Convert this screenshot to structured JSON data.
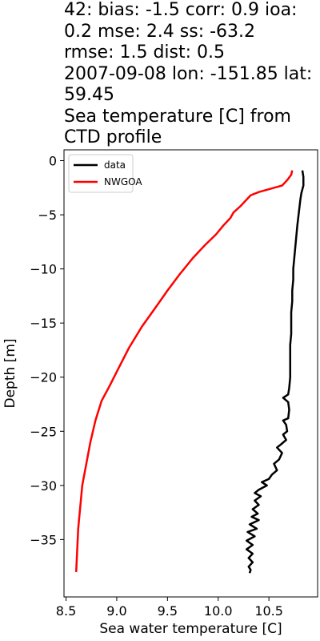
{
  "title_lines": [
    "42: bias: -1.5  corr: 0.9  ioa:",
    "0.2  mse: 2.4  ss: -63.2",
    "rmse: 1.5  dist: 0.5",
    "2007-09-08 lon: -151.85 lat:",
    "59.45",
    "Sea temperature [C] from",
    "CTD profile"
  ],
  "chart_data": {
    "type": "line",
    "title": "42: bias: -1.5  corr: 0.9  ioa: 0.2  mse: 2.4  ss: -63.2 rmse: 1.5  dist: 0.5 2007-09-08 lon: -151.85 lat: 59.45 Sea temperature [C] from CTD profile",
    "xlabel": "Sea water temperature [C]",
    "ylabel": "Depth [m]",
    "xlim": [
      8.48,
      10.98
    ],
    "ylim": [
      -40.3,
      1.0
    ],
    "xticks": [
      8.5,
      9.0,
      9.5,
      10.0,
      10.5
    ],
    "xtick_labels": [
      "8.5",
      "9.0",
      "9.5",
      "10.0",
      "10.5"
    ],
    "yticks": [
      0,
      -5,
      -10,
      -15,
      -20,
      -25,
      -30,
      -35
    ],
    "ytick_labels": [
      "0",
      "−5",
      "−10",
      "−15",
      "−20",
      "−25",
      "−30",
      "−35"
    ],
    "grid": false,
    "legend_position": "top-left",
    "series": [
      {
        "name": "data",
        "color": "#000000",
        "points": [
          [
            10.83,
            -0.9
          ],
          [
            10.84,
            -1.5
          ],
          [
            10.84,
            -2.3
          ],
          [
            10.82,
            -3.0
          ],
          [
            10.81,
            -3.6
          ],
          [
            10.8,
            -4.4
          ],
          [
            10.79,
            -5.2
          ],
          [
            10.78,
            -6.0
          ],
          [
            10.77,
            -7.0
          ],
          [
            10.76,
            -8.0
          ],
          [
            10.75,
            -9.0
          ],
          [
            10.74,
            -10.0
          ],
          [
            10.74,
            -11.0
          ],
          [
            10.73,
            -12.0
          ],
          [
            10.73,
            -13.0
          ],
          [
            10.72,
            -14.0
          ],
          [
            10.72,
            -15.0
          ],
          [
            10.72,
            -16.0
          ],
          [
            10.71,
            -17.0
          ],
          [
            10.71,
            -18.0
          ],
          [
            10.71,
            -19.0
          ],
          [
            10.71,
            -20.0
          ],
          [
            10.7,
            -21.0
          ],
          [
            10.69,
            -21.6
          ],
          [
            10.64,
            -21.9
          ],
          [
            10.69,
            -22.3
          ],
          [
            10.7,
            -23.0
          ],
          [
            10.69,
            -23.8
          ],
          [
            10.64,
            -24.0
          ],
          [
            10.67,
            -24.4
          ],
          [
            10.68,
            -25.0
          ],
          [
            10.64,
            -25.3
          ],
          [
            10.67,
            -25.8
          ],
          [
            10.62,
            -26.2
          ],
          [
            10.58,
            -26.5
          ],
          [
            10.63,
            -27.0
          ],
          [
            10.6,
            -27.6
          ],
          [
            10.55,
            -28.0
          ],
          [
            10.58,
            -28.6
          ],
          [
            10.53,
            -29.0
          ],
          [
            10.5,
            -29.4
          ],
          [
            10.43,
            -29.7
          ],
          [
            10.48,
            -30.0
          ],
          [
            10.4,
            -30.4
          ],
          [
            10.36,
            -30.7
          ],
          [
            10.42,
            -31.0
          ],
          [
            10.36,
            -31.4
          ],
          [
            10.4,
            -31.8
          ],
          [
            10.34,
            -32.2
          ],
          [
            10.39,
            -32.6
          ],
          [
            10.33,
            -32.9
          ],
          [
            10.4,
            -33.2
          ],
          [
            10.31,
            -33.6
          ],
          [
            10.38,
            -34.0
          ],
          [
            10.29,
            -34.3
          ],
          [
            10.36,
            -34.7
          ],
          [
            10.28,
            -35.1
          ],
          [
            10.34,
            -35.5
          ],
          [
            10.28,
            -35.9
          ],
          [
            10.34,
            -36.3
          ],
          [
            10.3,
            -36.7
          ],
          [
            10.34,
            -37.1
          ],
          [
            10.3,
            -37.5
          ],
          [
            10.32,
            -37.8
          ],
          [
            10.31,
            -38.1
          ]
        ]
      },
      {
        "name": "NWGOA",
        "color": "#ff0000",
        "points": [
          [
            10.73,
            -0.9
          ],
          [
            10.72,
            -1.3
          ],
          [
            10.68,
            -1.8
          ],
          [
            10.63,
            -2.3
          ],
          [
            10.4,
            -2.9
          ],
          [
            10.32,
            -3.2
          ],
          [
            10.28,
            -3.6
          ],
          [
            10.22,
            -4.2
          ],
          [
            10.15,
            -4.8
          ],
          [
            10.12,
            -5.3
          ],
          [
            10.05,
            -6.0
          ],
          [
            9.98,
            -6.8
          ],
          [
            9.87,
            -7.8
          ],
          [
            9.75,
            -9.0
          ],
          [
            9.62,
            -10.5
          ],
          [
            9.5,
            -12.0
          ],
          [
            9.38,
            -13.6
          ],
          [
            9.25,
            -15.3
          ],
          [
            9.12,
            -17.3
          ],
          [
            9.0,
            -19.5
          ],
          [
            8.93,
            -20.8
          ],
          [
            8.85,
            -22.2
          ],
          [
            8.79,
            -24.0
          ],
          [
            8.74,
            -26.0
          ],
          [
            8.7,
            -28.0
          ],
          [
            8.66,
            -30.0
          ],
          [
            8.64,
            -32.0
          ],
          [
            8.62,
            -34.0
          ],
          [
            8.61,
            -36.0
          ],
          [
            8.6,
            -38.0
          ]
        ]
      }
    ]
  }
}
